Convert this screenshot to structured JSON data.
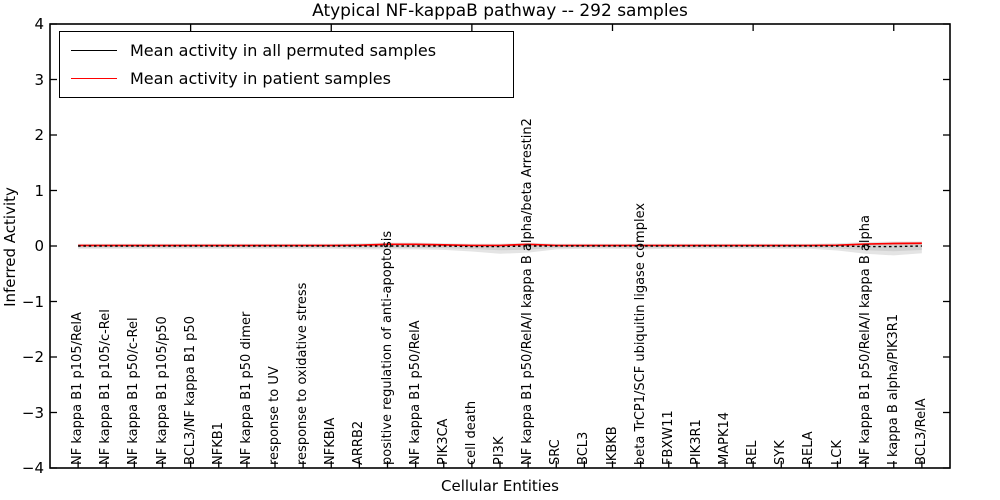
{
  "chart_data": {
    "type": "line",
    "title": "Atypical NF-kappaB pathway -- 292 samples",
    "xlabel": "Cellular Entities",
    "ylabel": "Inferred Activity",
    "ylim": [
      -4,
      4
    ],
    "yticks": [
      "4",
      "3",
      "2",
      "1",
      "0",
      "−1",
      "−2",
      "−3",
      "−4"
    ],
    "grid": false,
    "legend_position": "upper left",
    "categories": [
      "NF kappa B1 p105/RelA",
      "NF kappa B1 p105/c-Rel",
      "NF kappa B1 p50/c-Rel",
      "NF kappa B1 p105/p50",
      "BCL3/NF kappa B1 p50",
      "NFKB1",
      "NF kappa B1 p50 dimer",
      "response to UV",
      "response to oxidative stress",
      "NFKBIA",
      "ARRB2",
      "positive regulation of anti-apoptosis",
      "NF kappa B1 p50/RelA",
      "PIK3CA",
      "cell death",
      "PI3K",
      "NF kappa B1 p50/RelA/I kappa B alpha/beta Arrestin2",
      "SRC",
      "BCL3",
      "IKBKB",
      "beta TrCP1/SCF ubiquitin ligase complex",
      "FBXW11",
      "PIK3R1",
      "MAPK14",
      "REL",
      "SYK",
      "RELA",
      "LCK",
      "NF kappa B1 p50/RelA/I kappa B alpha",
      "I kappa B alpha/PIK3R1",
      "BCL3/RelA"
    ],
    "series": [
      {
        "name": "Mean activity in all permuted samples",
        "color": "#000000",
        "values": [
          0,
          0,
          0,
          0,
          0,
          0,
          0,
          0,
          0,
          0,
          0,
          0,
          0,
          0,
          -0.01,
          -0.01,
          0,
          0,
          0,
          0,
          0,
          0,
          0,
          0,
          0,
          0,
          0,
          0,
          -0.01,
          -0.01,
          0
        ]
      },
      {
        "name": "Mean activity in patient samples",
        "color": "#ff0000",
        "values": [
          0.01,
          0.01,
          0.01,
          0.01,
          0.01,
          0.01,
          0.01,
          0.01,
          0.01,
          0.01,
          0.015,
          0.03,
          0.03,
          0.02,
          0.01,
          0.01,
          0.03,
          0.01,
          0.01,
          0.01,
          0.01,
          0.01,
          0.01,
          0.01,
          0.01,
          0.01,
          0.01,
          0.015,
          0.035,
          0.045,
          0.05
        ]
      }
    ],
    "band": {
      "name": "permuted samples spread",
      "color": "#bbbbbb",
      "upper": [
        0.04,
        0.04,
        0.04,
        0.04,
        0.04,
        0.04,
        0.04,
        0.04,
        0.04,
        0.04,
        0.05,
        0.06,
        0.06,
        0.05,
        0.04,
        0.04,
        0.06,
        0.04,
        0.04,
        0.04,
        0.04,
        0.04,
        0.04,
        0.04,
        0.04,
        0.04,
        0.04,
        0.05,
        0.07,
        0.08,
        0.08
      ],
      "lower": [
        -0.05,
        -0.05,
        -0.05,
        -0.05,
        -0.05,
        -0.05,
        -0.05,
        -0.05,
        -0.05,
        -0.05,
        -0.06,
        -0.06,
        -0.06,
        -0.07,
        -0.1,
        -0.14,
        -0.12,
        -0.06,
        -0.05,
        -0.05,
        -0.06,
        -0.05,
        -0.05,
        -0.05,
        -0.05,
        -0.05,
        -0.05,
        -0.08,
        -0.14,
        -0.17,
        -0.13
      ]
    }
  }
}
